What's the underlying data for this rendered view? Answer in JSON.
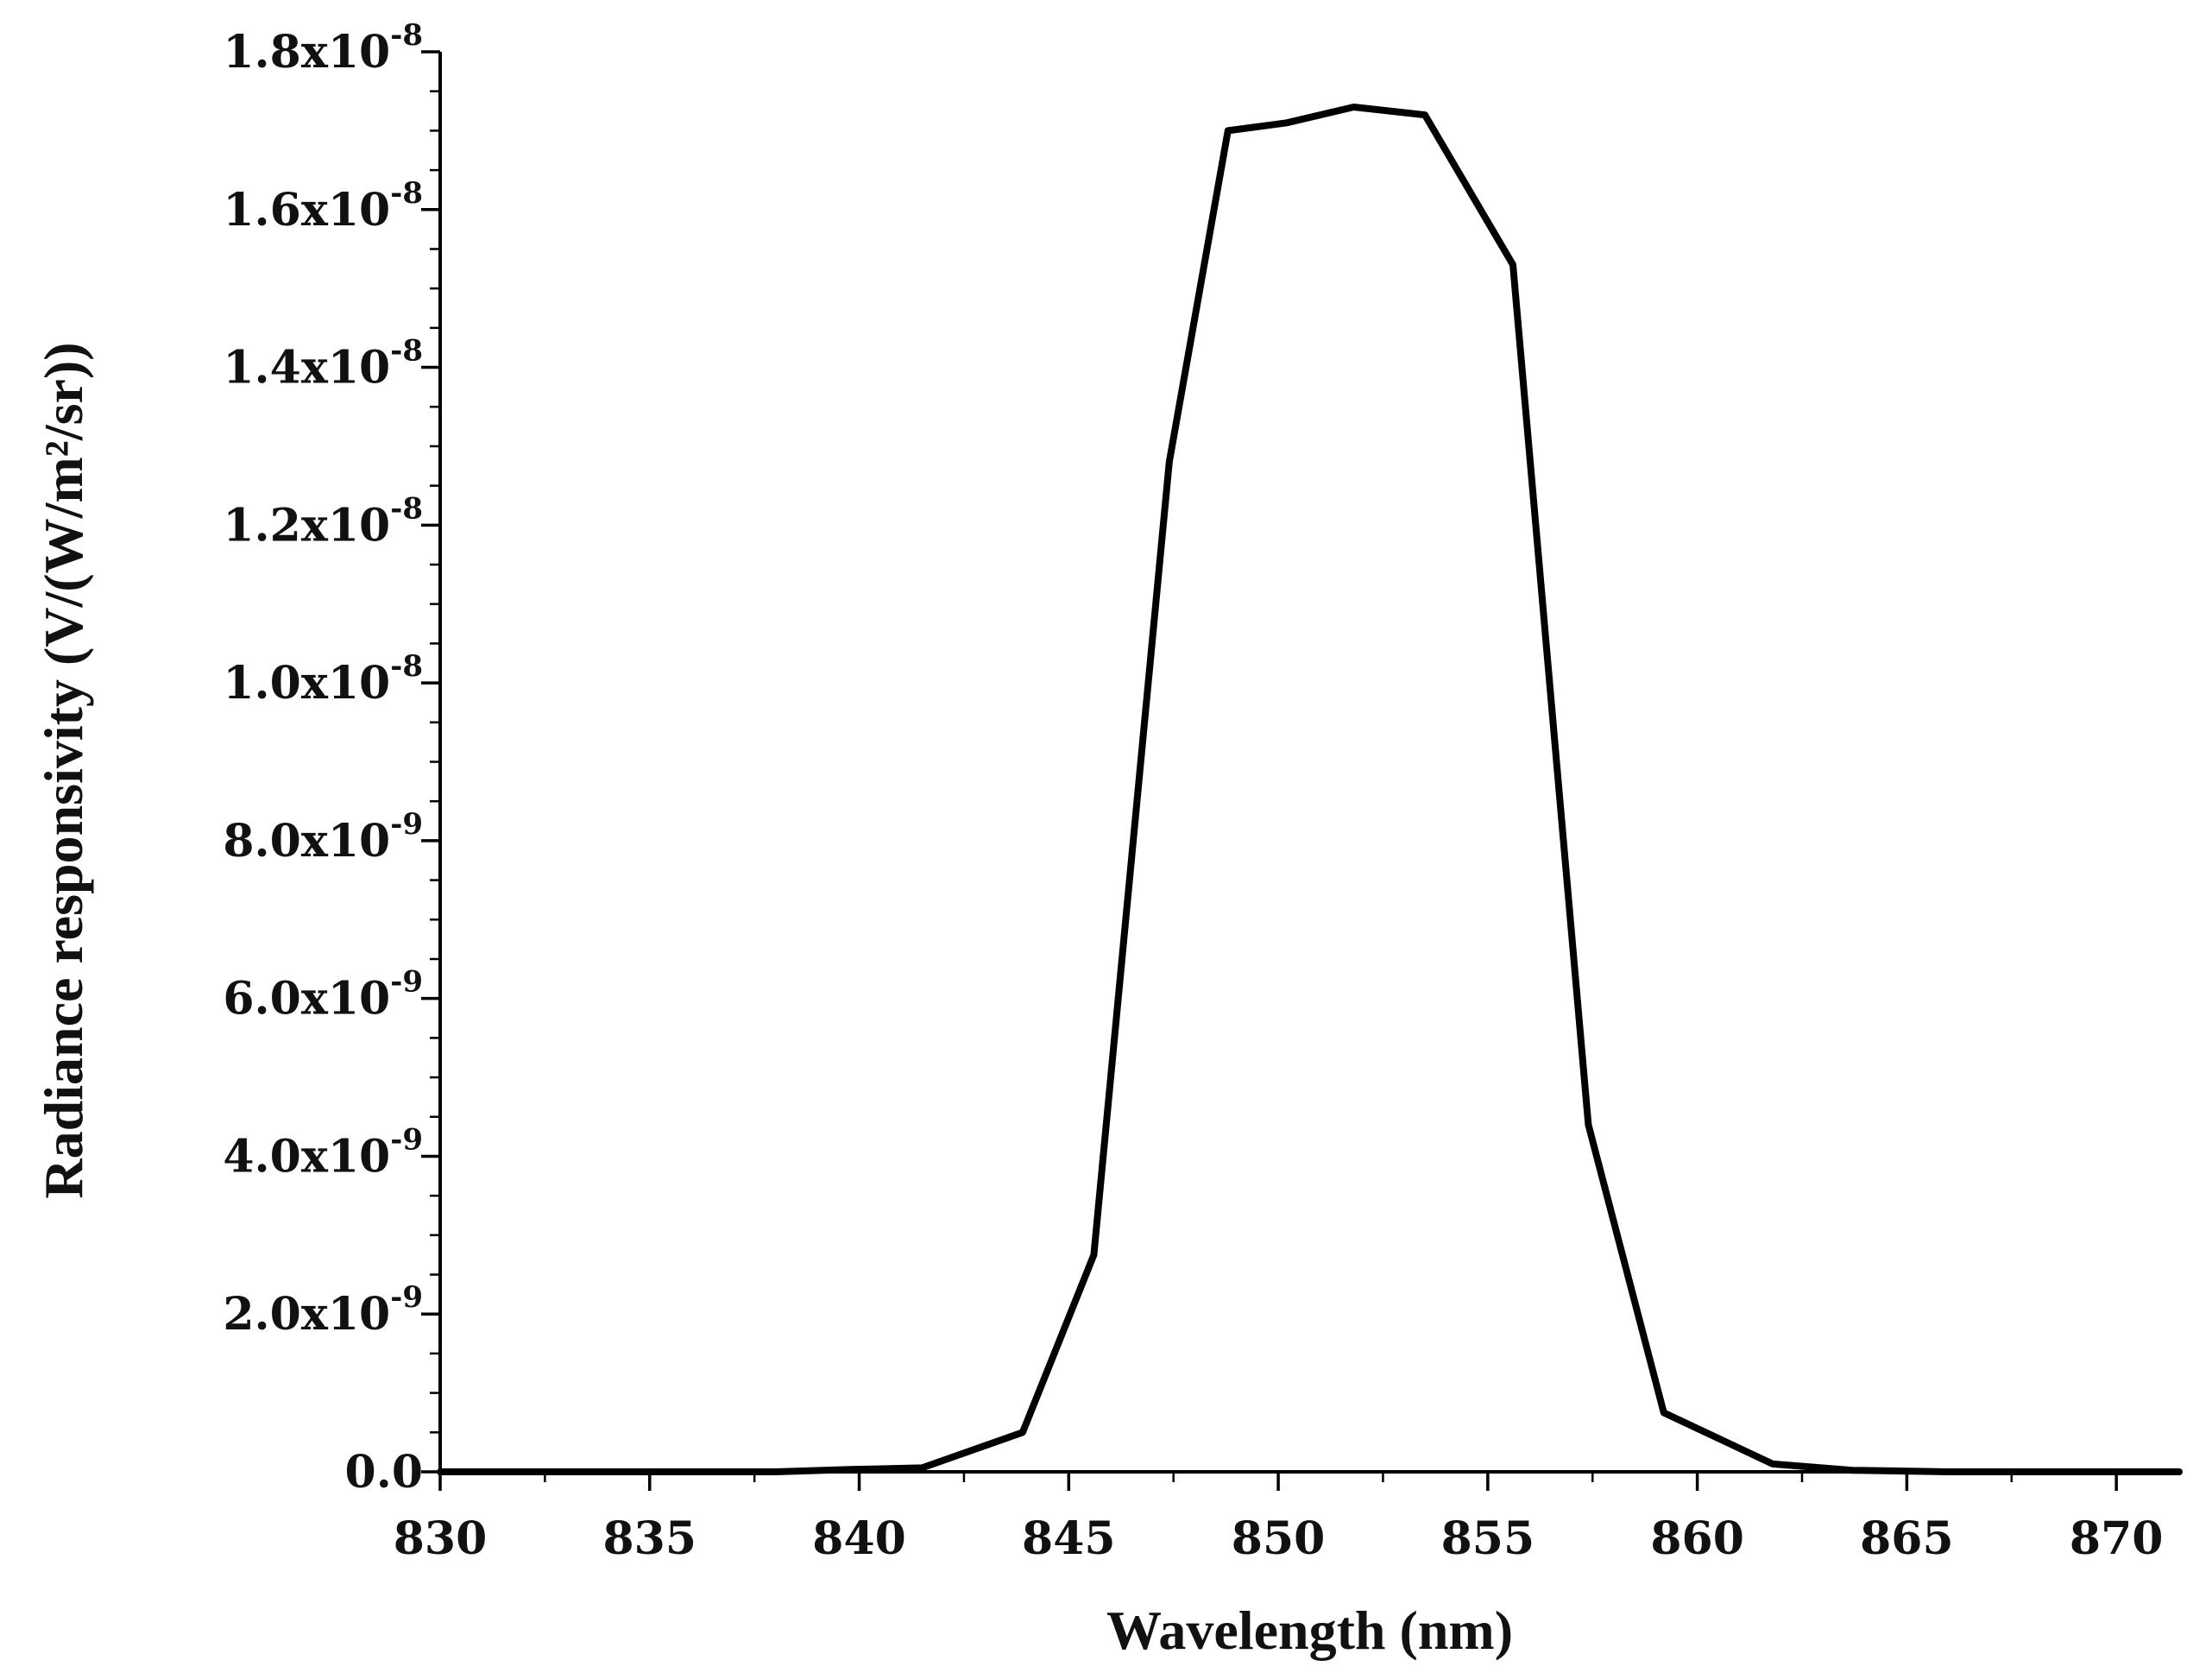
{
  "chart_data": {
    "type": "line",
    "title": "",
    "xlabel": "Wavelength (nm)",
    "ylabel": "Radiance responsivity (V/(W/m²/sr))",
    "xlim": [
      830,
      871.5
    ],
    "ylim": [
      0,
      1.8e-08
    ],
    "grid": false,
    "x_ticks": [
      {
        "value": 830,
        "label": "830"
      },
      {
        "value": 835,
        "label": "835"
      },
      {
        "value": 840,
        "label": "840"
      },
      {
        "value": 845,
        "label": "845"
      },
      {
        "value": 850,
        "label": "850"
      },
      {
        "value": 855,
        "label": "855"
      },
      {
        "value": 860,
        "label": "860"
      },
      {
        "value": 865,
        "label": "865"
      },
      {
        "value": 870,
        "label": "870"
      }
    ],
    "y_ticks": [
      {
        "value": 0,
        "mantissa": "0.0",
        "exp": ""
      },
      {
        "value": 2e-09,
        "mantissa": "2.0x10",
        "exp": "-9"
      },
      {
        "value": 4e-09,
        "mantissa": "4.0x10",
        "exp": "-9"
      },
      {
        "value": 6e-09,
        "mantissa": "6.0x10",
        "exp": "-9"
      },
      {
        "value": 8e-09,
        "mantissa": "8.0x10",
        "exp": "-9"
      },
      {
        "value": 1e-08,
        "mantissa": "1.0x10",
        "exp": "-8"
      },
      {
        "value": 1.2e-08,
        "mantissa": "1.2x10",
        "exp": "-8"
      },
      {
        "value": 1.4e-08,
        "mantissa": "1.4x10",
        "exp": "-8"
      },
      {
        "value": 1.6e-08,
        "mantissa": "1.6x10",
        "exp": "-8"
      },
      {
        "value": 1.8e-08,
        "mantissa": "1.8x10",
        "exp": "-8"
      }
    ],
    "series": [
      {
        "name": "Radiance responsivity",
        "x": [
          830,
          832,
          834,
          836,
          838,
          839.8,
          841.5,
          843.9,
          845.6,
          847.4,
          848.8,
          850.2,
          851.8,
          853.5,
          855.6,
          857.4,
          859.2,
          861.8,
          863.7,
          866,
          868,
          871.5
        ],
        "y": [
          0,
          0,
          0,
          0,
          0,
          3e-11,
          5e-11,
          5e-10,
          2.75e-09,
          1.28e-08,
          1.7e-08,
          1.71e-08,
          1.73e-08,
          1.72e-08,
          1.53e-08,
          4.4e-09,
          7.5e-10,
          1e-10,
          2e-11,
          0,
          0,
          0
        ]
      }
    ]
  }
}
